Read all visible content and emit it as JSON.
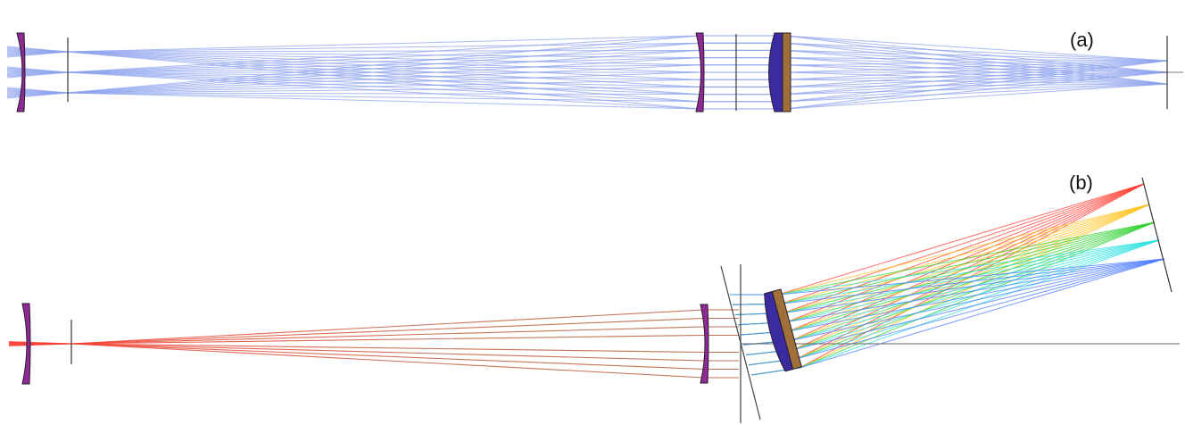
{
  "panels": {
    "a": {
      "label": "(a)"
    },
    "b": {
      "label": "(b)"
    }
  },
  "colors": {
    "singlet_lens": "#8e2a93",
    "doublet_crown": "#3a2ba0",
    "doublet_flint": "#a0703a",
    "lens_outline": "#2a1a2a",
    "ray_a": "#8ea3ee",
    "ray_b_input": "#b55a3a",
    "ray_b_red": "#ff3b30",
    "ray_b_yellow": "#ffc21a",
    "ray_b_green": "#2fd12f",
    "ray_b_cyan": "#2fe0e0",
    "ray_b_blue": "#4a7bff",
    "axis_line": "#555555"
  },
  "dispersed_bands": [
    "red",
    "yellow",
    "green",
    "cyan",
    "blue"
  ]
}
